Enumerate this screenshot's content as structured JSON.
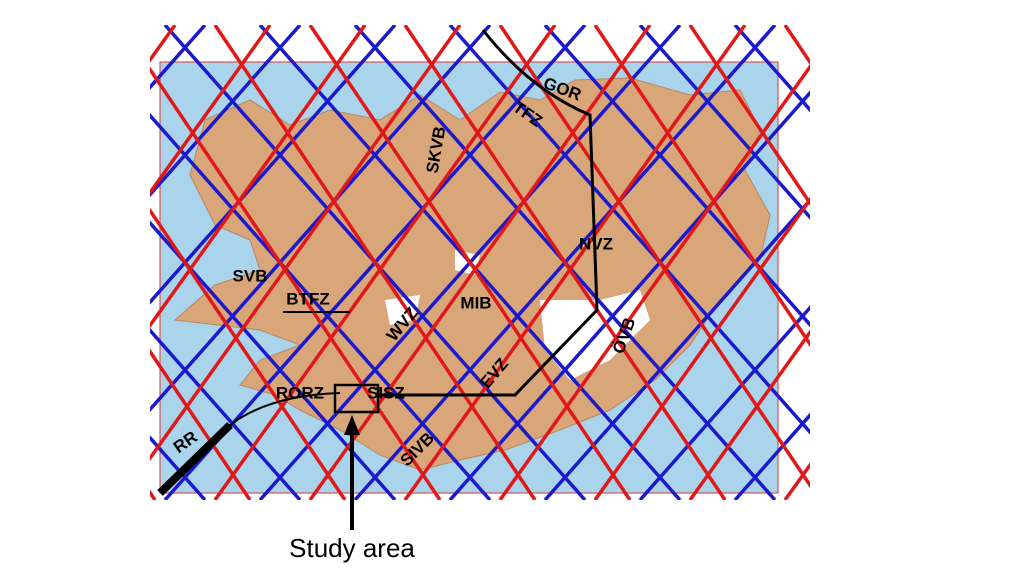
{
  "labels": [
    "GOR",
    "TFZ",
    "SKVB",
    "NVZ",
    "SVB",
    "BTFZ",
    "MIB",
    "WVZ",
    "ÖVB",
    "EVZ",
    "RORZ",
    "SISZ",
    "RR",
    "SIVB"
  ],
  "caption": "Study area"
}
